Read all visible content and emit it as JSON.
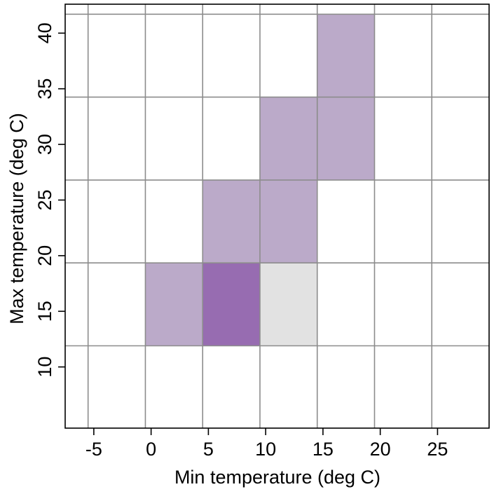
{
  "chart_data": {
    "type": "heatmap",
    "title": "",
    "xlabel": "Min temperature (deg C)",
    "ylabel": "Max temperature (deg C)",
    "xlim": [
      -7.5,
      29.5
    ],
    "ylim": [
      4.5,
      42.6
    ],
    "x_ticks": [
      -5,
      0,
      5,
      10,
      15,
      20,
      25
    ],
    "y_ticks": [
      10,
      15,
      20,
      25,
      30,
      35,
      40
    ],
    "x_bin_edges": [
      -5.5,
      -0.5,
      4.5,
      9.5,
      14.5,
      19.5,
      24.5
    ],
    "y_bin_edges": [
      11.9,
      19.35,
      26.8,
      34.25,
      41.7
    ],
    "cells": [
      {
        "x": [
          -0.5,
          4.5
        ],
        "y": [
          11.9,
          19.35
        ],
        "color": "#bbaac9"
      },
      {
        "x": [
          4.5,
          9.5
        ],
        "y": [
          11.9,
          19.35
        ],
        "color": "#976cb1"
      },
      {
        "x": [
          9.5,
          14.5
        ],
        "y": [
          11.9,
          19.35
        ],
        "color": "#e2e2e2"
      },
      {
        "x": [
          4.5,
          9.5
        ],
        "y": [
          19.35,
          26.8
        ],
        "color": "#bbaac9"
      },
      {
        "x": [
          9.5,
          14.5
        ],
        "y": [
          19.35,
          26.8
        ],
        "color": "#bbaac9"
      },
      {
        "x": [
          9.5,
          14.5
        ],
        "y": [
          26.8,
          34.25
        ],
        "color": "#bbaac9"
      },
      {
        "x": [
          14.5,
          19.5
        ],
        "y": [
          26.8,
          34.25
        ],
        "color": "#bbaac9"
      },
      {
        "x": [
          14.5,
          19.5
        ],
        "y": [
          34.25,
          41.7
        ],
        "color": "#bbaac9"
      }
    ],
    "grid": true,
    "grid_color": "#8c8c8c",
    "legend": "none"
  }
}
